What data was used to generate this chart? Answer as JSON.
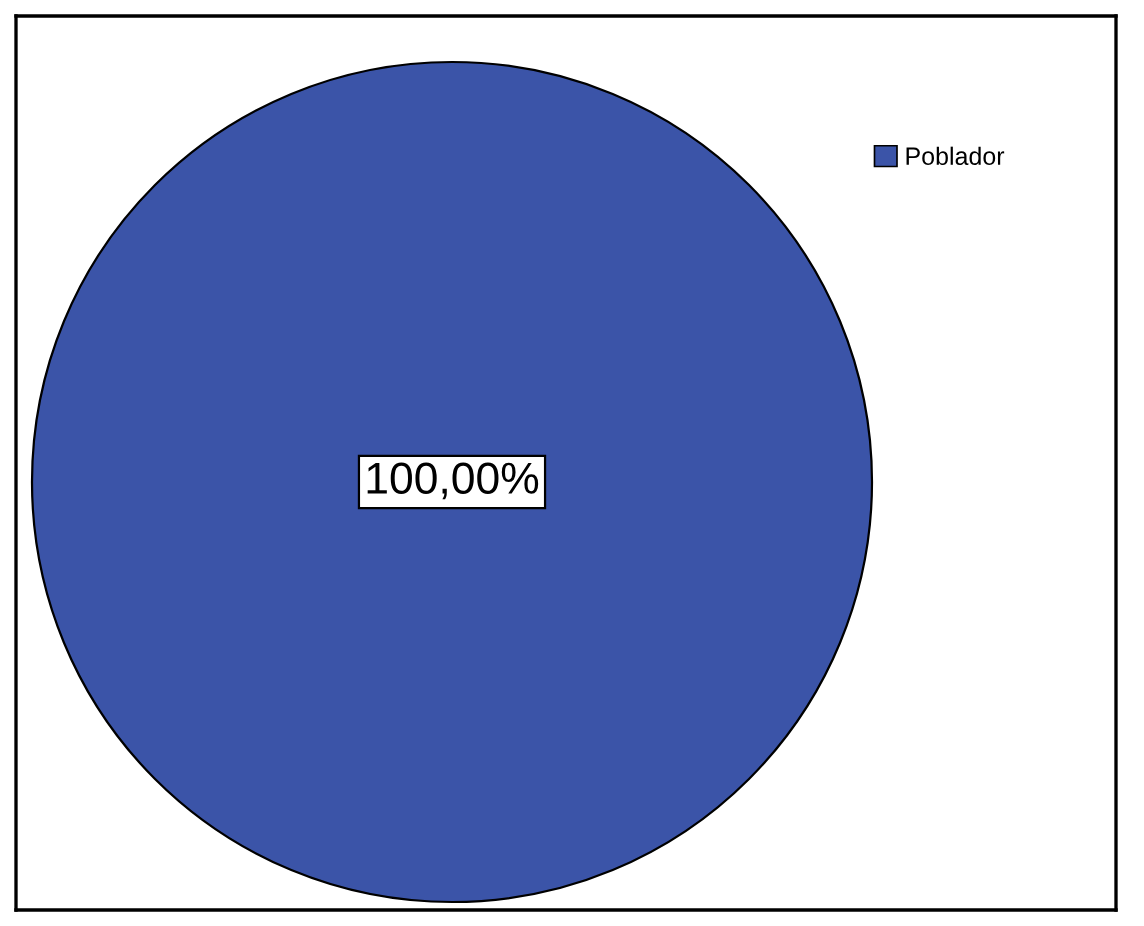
{
  "chart_data": {
    "type": "pie",
    "categories": [
      "Poblador"
    ],
    "values": [
      100
    ],
    "colors": [
      "#3b54a8"
    ],
    "value_labels": [
      "100,00%"
    ],
    "legend": "top right"
  }
}
